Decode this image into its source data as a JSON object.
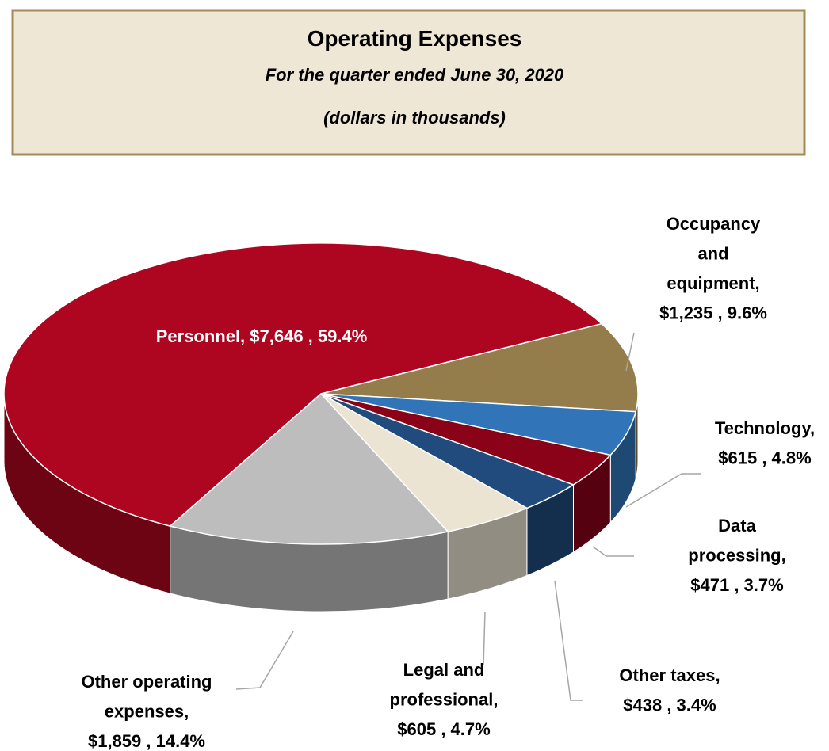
{
  "title": "Operating Expenses",
  "subtitle": "For the quarter ended June 30, 2020",
  "note": "(dollars in thousands)",
  "chart_data": {
    "type": "pie",
    "labels": [
      [
        "Personnel, $7,646 , 59.4%"
      ],
      [
        "Occupancy",
        "and",
        "equipment,",
        "$1,235 , 9.6%"
      ],
      [
        "Technology,",
        "$615 , 4.8%"
      ],
      [
        "Data",
        "processing,",
        "$471 , 3.7%"
      ],
      [
        "Other taxes,",
        "$438 , 3.4%"
      ],
      [
        "Legal and",
        "professional,",
        "$605 , 4.7%"
      ],
      [
        "Other operating",
        "expenses,",
        "$1,859 , 14.4%"
      ]
    ],
    "values": [
      7646,
      1235,
      615,
      471,
      438,
      605,
      1859
    ],
    "colors": [
      "#ae0620",
      "#957c4b",
      "#3175b8",
      "#8a0218",
      "#214b7c",
      "#ece4d3",
      "#bdbdbd"
    ]
  }
}
